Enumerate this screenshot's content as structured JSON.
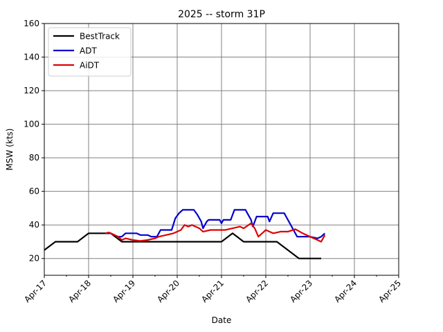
{
  "chart_data": {
    "type": "line",
    "title": "2025 -- storm 31P",
    "xlabel": "Date",
    "ylabel": "MSW (kts)",
    "xlim": [
      "2025-04-17 00:00",
      "2025-04-25 00:00"
    ],
    "ylim": [
      10,
      160
    ],
    "x_ticks": [
      {
        "date": "2025-04-17",
        "label": "Apr-17"
      },
      {
        "date": "2025-04-18",
        "label": "Apr-18"
      },
      {
        "date": "2025-04-19",
        "label": "Apr-19"
      },
      {
        "date": "2025-04-20",
        "label": "Apr-20"
      },
      {
        "date": "2025-04-21",
        "label": "Apr-21"
      },
      {
        "date": "2025-04-22",
        "label": "Apr-22"
      },
      {
        "date": "2025-04-23",
        "label": "Apr-23"
      },
      {
        "date": "2025-04-24",
        "label": "Apr-24"
      },
      {
        "date": "2025-04-25",
        "label": "Apr-25"
      }
    ],
    "y_ticks": [
      20,
      40,
      60,
      80,
      100,
      120,
      140,
      160
    ],
    "grid": true,
    "legend_position": "top-left",
    "series": [
      {
        "name": "BestTrack",
        "color": "#000000",
        "points": [
          [
            "2025-04-17 00:00",
            25
          ],
          [
            "2025-04-17 06:00",
            30
          ],
          [
            "2025-04-17 12:00",
            30
          ],
          [
            "2025-04-17 18:00",
            30
          ],
          [
            "2025-04-18 00:00",
            35
          ],
          [
            "2025-04-18 06:00",
            35
          ],
          [
            "2025-04-18 12:00",
            35
          ],
          [
            "2025-04-18 18:00",
            30
          ],
          [
            "2025-04-19 00:00",
            30
          ],
          [
            "2025-04-19 06:00",
            30
          ],
          [
            "2025-04-19 12:00",
            30
          ],
          [
            "2025-04-19 18:00",
            30
          ],
          [
            "2025-04-20 00:00",
            30
          ],
          [
            "2025-04-20 06:00",
            30
          ],
          [
            "2025-04-20 12:00",
            30
          ],
          [
            "2025-04-20 18:00",
            30
          ],
          [
            "2025-04-21 00:00",
            30
          ],
          [
            "2025-04-21 06:00",
            35
          ],
          [
            "2025-04-21 12:00",
            30
          ],
          [
            "2025-04-21 18:00",
            30
          ],
          [
            "2025-04-22 00:00",
            30
          ],
          [
            "2025-04-22 06:00",
            30
          ],
          [
            "2025-04-22 12:00",
            25
          ],
          [
            "2025-04-22 18:00",
            20
          ],
          [
            "2025-04-23 00:00",
            20
          ],
          [
            "2025-04-23 06:00",
            20
          ]
        ]
      },
      {
        "name": "ADT",
        "color": "#0000cc",
        "points": [
          [
            "2025-04-18 09:00",
            35
          ],
          [
            "2025-04-18 12:00",
            35
          ],
          [
            "2025-04-18 14:00",
            34
          ],
          [
            "2025-04-18 16:00",
            33
          ],
          [
            "2025-04-18 18:00",
            33
          ],
          [
            "2025-04-18 20:00",
            35
          ],
          [
            "2025-04-19 02:00",
            35
          ],
          [
            "2025-04-19 04:00",
            34
          ],
          [
            "2025-04-19 08:00",
            34
          ],
          [
            "2025-04-19 10:00",
            33
          ],
          [
            "2025-04-19 13:00",
            33
          ],
          [
            "2025-04-19 15:00",
            37
          ],
          [
            "2025-04-19 21:00",
            37
          ],
          [
            "2025-04-19 23:00",
            44
          ],
          [
            "2025-04-20 01:00",
            47
          ],
          [
            "2025-04-20 03:00",
            49
          ],
          [
            "2025-04-20 09:00",
            49
          ],
          [
            "2025-04-20 11:00",
            46
          ],
          [
            "2025-04-20 13:00",
            42
          ],
          [
            "2025-04-20 14:00",
            38
          ],
          [
            "2025-04-20 16:00",
            42
          ],
          [
            "2025-04-20 17:00",
            43
          ],
          [
            "2025-04-20 23:00",
            43
          ],
          [
            "2025-04-21 00:00",
            41
          ],
          [
            "2025-04-21 01:00",
            43
          ],
          [
            "2025-04-21 05:00",
            43
          ],
          [
            "2025-04-21 07:00",
            49
          ],
          [
            "2025-04-21 13:00",
            49
          ],
          [
            "2025-04-21 14:00",
            47
          ],
          [
            "2025-04-21 16:00",
            43
          ],
          [
            "2025-04-21 17:00",
            39
          ],
          [
            "2025-04-21 19:00",
            45
          ],
          [
            "2025-04-22 01:00",
            45
          ],
          [
            "2025-04-22 02:00",
            42
          ],
          [
            "2025-04-22 04:00",
            47
          ],
          [
            "2025-04-22 10:00",
            47
          ],
          [
            "2025-04-22 11:00",
            45
          ],
          [
            "2025-04-22 13:00",
            41
          ],
          [
            "2025-04-22 15:00",
            37
          ],
          [
            "2025-04-22 17:00",
            33
          ],
          [
            "2025-04-23 00:00",
            33
          ],
          [
            "2025-04-23 04:00",
            32
          ],
          [
            "2025-04-23 06:00",
            33
          ],
          [
            "2025-04-23 08:00",
            35
          ]
        ]
      },
      {
        "name": "AiDT",
        "color": "#dd0000",
        "points": [
          [
            "2025-04-18 09:00",
            35
          ],
          [
            "2025-04-18 11:00",
            35.5
          ],
          [
            "2025-04-18 14:00",
            34
          ],
          [
            "2025-04-18 16:00",
            33
          ],
          [
            "2025-04-18 18:00",
            31
          ],
          [
            "2025-04-18 20:00",
            32
          ],
          [
            "2025-04-19 00:00",
            31
          ],
          [
            "2025-04-19 04:00",
            30.5
          ],
          [
            "2025-04-19 08:00",
            31
          ],
          [
            "2025-04-19 12:00",
            32
          ],
          [
            "2025-04-19 14:00",
            33
          ],
          [
            "2025-04-19 18:00",
            34
          ],
          [
            "2025-04-19 22:00",
            35
          ],
          [
            "2025-04-20 02:00",
            37
          ],
          [
            "2025-04-20 04:00",
            40
          ],
          [
            "2025-04-20 06:00",
            39
          ],
          [
            "2025-04-20 08:00",
            40
          ],
          [
            "2025-04-20 12:00",
            38
          ],
          [
            "2025-04-20 14:00",
            36
          ],
          [
            "2025-04-20 18:00",
            37
          ],
          [
            "2025-04-20 22:00",
            37
          ],
          [
            "2025-04-21 02:00",
            37
          ],
          [
            "2025-04-21 06:00",
            38
          ],
          [
            "2025-04-21 10:00",
            39
          ],
          [
            "2025-04-21 12:00",
            38
          ],
          [
            "2025-04-21 16:00",
            41
          ],
          [
            "2025-04-21 18:00",
            38
          ],
          [
            "2025-04-21 20:00",
            33
          ],
          [
            "2025-04-22 00:00",
            37
          ],
          [
            "2025-04-22 04:00",
            35
          ],
          [
            "2025-04-22 08:00",
            36
          ],
          [
            "2025-04-22 12:00",
            36
          ],
          [
            "2025-04-22 16:00",
            37.5
          ],
          [
            "2025-04-22 20:00",
            35
          ],
          [
            "2025-04-23 00:00",
            33
          ],
          [
            "2025-04-23 04:00",
            31
          ],
          [
            "2025-04-23 06:00",
            30
          ],
          [
            "2025-04-23 08:00",
            34
          ]
        ]
      }
    ]
  }
}
